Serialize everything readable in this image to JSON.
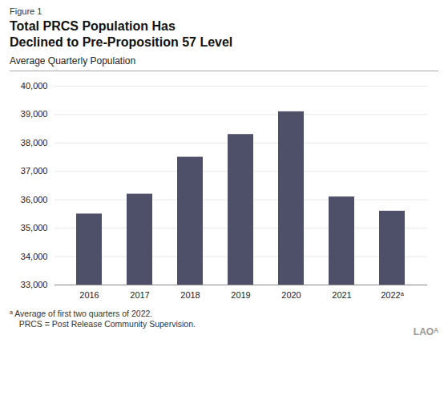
{
  "chart_data": {
    "type": "bar",
    "title": "Total PRCS Population Has\nDeclined to Pre-Proposition 57 Level",
    "subtitle": "Average Quarterly Population",
    "annotations": [
      "Figure 1",
      "ᵃ Average of first two quarters of 2022.",
      "    PRCS = Post Release Community Supervision.",
      "LAOᴬ"
    ],
    "categories": [
      "2016",
      "2017",
      "2018",
      "2019",
      "2020",
      "2021",
      "2022ᵃ"
    ],
    "values": [
      35500,
      36200,
      37500,
      38300,
      39100,
      36100,
      35600
    ],
    "color": "#4d5068",
    "ylim": [
      33000,
      40000
    ],
    "yticks": [
      {
        "value": 33000,
        "label": "33,000"
      },
      {
        "value": 34000,
        "label": "34,000"
      },
      {
        "value": 35000,
        "label": "35,000"
      },
      {
        "value": 36000,
        "label": "36,000"
      },
      {
        "value": 37000,
        "label": "37,000"
      },
      {
        "value": 38000,
        "label": "38,000"
      },
      {
        "value": 39000,
        "label": "39,000"
      },
      {
        "value": 40000,
        "label": "40,000"
      }
    ],
    "grid": true
  }
}
